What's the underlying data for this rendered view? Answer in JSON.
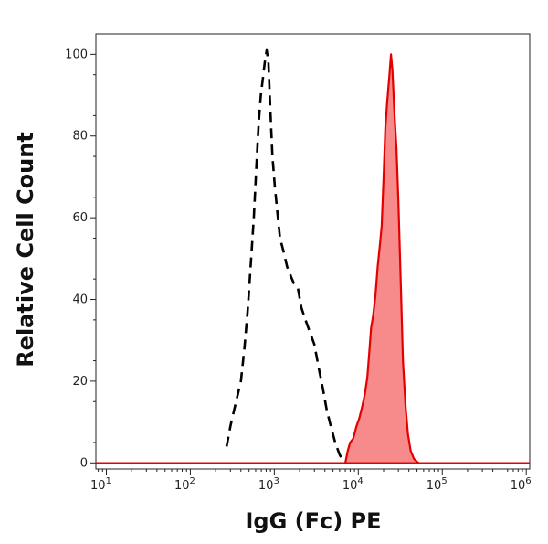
{
  "chart_data": {
    "type": "area",
    "title": "",
    "xlabel": "IgG (Fc) PE",
    "ylabel": "Relative Cell Count",
    "x_scale": "log",
    "xlim": [
      7.5,
      1100000
    ],
    "ylim": [
      -1.5,
      105
    ],
    "grid": false,
    "legend": "none",
    "x_ticks": [
      {
        "value": 10,
        "base": "10",
        "exp": "1"
      },
      {
        "value": 100,
        "base": "10",
        "exp": "2"
      },
      {
        "value": 1000,
        "base": "10",
        "exp": "3"
      },
      {
        "value": 10000,
        "base": "10",
        "exp": "4"
      },
      {
        "value": 100000,
        "base": "10",
        "exp": "5"
      },
      {
        "value": 1000000,
        "base": "10",
        "exp": "6"
      }
    ],
    "y_ticks": [
      0,
      20,
      40,
      60,
      80,
      100
    ],
    "series": [
      {
        "style": "dashed",
        "color": "#000000",
        "points": [
          [
            270,
            4
          ],
          [
            300,
            9
          ],
          [
            350,
            15
          ],
          [
            400,
            20
          ],
          [
            440,
            28
          ],
          [
            480,
            37
          ],
          [
            530,
            50
          ],
          [
            570,
            60
          ],
          [
            610,
            72
          ],
          [
            650,
            83
          ],
          [
            690,
            90
          ],
          [
            730,
            94
          ],
          [
            770,
            98
          ],
          [
            810,
            101
          ],
          [
            850,
            98
          ],
          [
            890,
            88
          ],
          [
            950,
            75
          ],
          [
            1010,
            68
          ],
          [
            1080,
            62
          ],
          [
            1170,
            55
          ],
          [
            1280,
            52
          ],
          [
            1420,
            48
          ],
          [
            1550,
            46
          ],
          [
            1700,
            44
          ],
          [
            1900,
            43
          ],
          [
            2100,
            38
          ],
          [
            2350,
            35
          ],
          [
            2650,
            32
          ],
          [
            3000,
            29
          ],
          [
            3400,
            23
          ],
          [
            3800,
            18
          ],
          [
            4200,
            13
          ],
          [
            4700,
            9
          ],
          [
            5300,
            5
          ],
          [
            6000,
            2
          ],
          [
            6600,
            0.5
          ]
        ]
      },
      {
        "style": "filled",
        "color": "#e50000",
        "fill": "#f78b8b",
        "points": [
          [
            7000,
            0
          ],
          [
            7500,
            3
          ],
          [
            8000,
            5
          ],
          [
            8700,
            6
          ],
          [
            9500,
            9
          ],
          [
            10300,
            11
          ],
          [
            11200,
            14
          ],
          [
            12000,
            17
          ],
          [
            12800,
            21
          ],
          [
            13500,
            27
          ],
          [
            14200,
            33
          ],
          [
            15000,
            36
          ],
          [
            16000,
            41
          ],
          [
            17000,
            48
          ],
          [
            18000,
            53
          ],
          [
            19000,
            58
          ],
          [
            20000,
            70
          ],
          [
            21000,
            82
          ],
          [
            22000,
            88
          ],
          [
            23500,
            95
          ],
          [
            24500,
            100
          ],
          [
            25500,
            96
          ],
          [
            27000,
            85
          ],
          [
            28500,
            77
          ],
          [
            30000,
            64
          ],
          [
            32000,
            44
          ],
          [
            34000,
            25
          ],
          [
            36500,
            14
          ],
          [
            39000,
            7
          ],
          [
            42000,
            3
          ],
          [
            46000,
            1
          ],
          [
            52000,
            0
          ]
        ]
      }
    ]
  }
}
